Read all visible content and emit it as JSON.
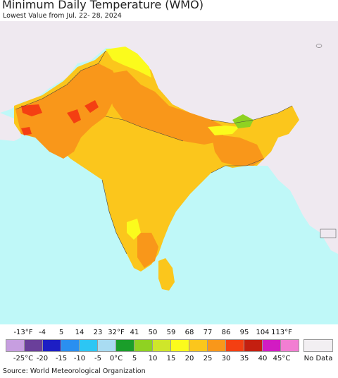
{
  "title": "Minimum Daily Temperature (WMO)",
  "subtitle": "Lowest Value from Jul. 22- 28, 2024",
  "source": "Source: World Meteorological Organization",
  "colors": {
    "ocean": "#bff8f8",
    "land_outside": "#efe9f0",
    "no_data": "#f2eff2"
  },
  "legend": {
    "fahrenheit_labels": [
      "-13°F",
      "-4",
      "5",
      "14",
      "23",
      "32°F",
      "41",
      "50",
      "59",
      "68",
      "77",
      "86",
      "95",
      "104",
      "113°F"
    ],
    "celsius_labels": [
      "-25°C",
      "-20",
      "-15",
      "-10",
      "-5",
      "0°C",
      "5",
      "10",
      "15",
      "20",
      "25",
      "30",
      "35",
      "40",
      "45°C"
    ],
    "swatches": [
      "#c79ee0",
      "#6a3f9a",
      "#1d1ec4",
      "#2a8ff0",
      "#2cc6f4",
      "#a9dcf2",
      "#1a9e2a",
      "#8fd222",
      "#cfe62a",
      "#fbfb1c",
      "#fbc61c",
      "#f9971a",
      "#f43f12",
      "#c41f10",
      "#d21bc2",
      "#f27ed2"
    ],
    "no_data_label": "No Data"
  }
}
